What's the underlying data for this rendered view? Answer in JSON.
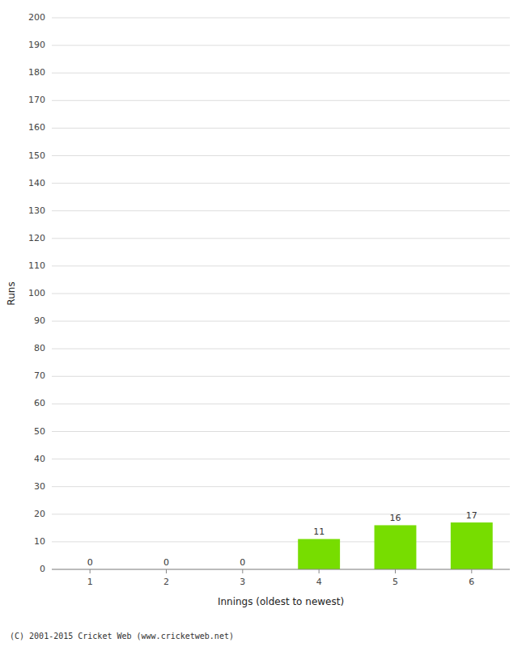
{
  "chart_data": {
    "type": "bar",
    "categories": [
      1,
      2,
      3,
      4,
      5,
      6
    ],
    "values": [
      0,
      0,
      0,
      11,
      16,
      17
    ],
    "color": "#77dd00",
    "x_label": "Innings (oldest to newest)",
    "y_label": "Runs",
    "ylim": [
      0,
      200
    ],
    "yticks": [
      0,
      10,
      20,
      30,
      40,
      50,
      60,
      70,
      80,
      90,
      100,
      110,
      120,
      130,
      140,
      150,
      160,
      170,
      180,
      190,
      200
    ],
    "grid": true,
    "data_labels": true,
    "annotations": [
      "(C) 2001-2015 Cricket Web (www.cricketweb.net)"
    ]
  }
}
